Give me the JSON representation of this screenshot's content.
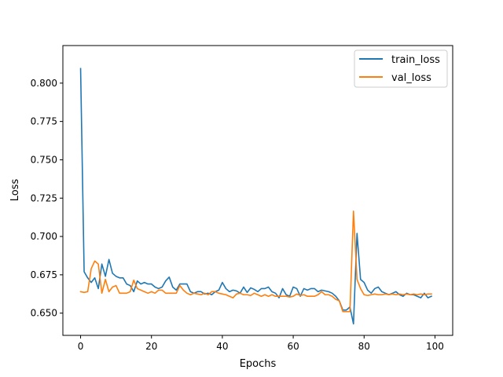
{
  "chart_data": {
    "type": "line",
    "title": "",
    "xlabel": "Epochs",
    "ylabel": "Loss",
    "xlim": [
      -5,
      105
    ],
    "ylim": [
      0.6355,
      0.8245
    ],
    "xticks": [
      0,
      20,
      40,
      60,
      80,
      100
    ],
    "yticks": [
      0.65,
      0.675,
      0.7,
      0.725,
      0.75,
      0.775,
      0.8
    ],
    "ytick_labels": [
      "0.650",
      "0.675",
      "0.700",
      "0.725",
      "0.750",
      "0.775",
      "0.800"
    ],
    "grid": false,
    "legend_position": "top-right",
    "series": [
      {
        "name": "train_loss",
        "color": "#1f77b4",
        "values": [
          0.8095,
          0.677,
          0.673,
          0.67,
          0.673,
          0.666,
          0.682,
          0.674,
          0.685,
          0.676,
          0.674,
          0.673,
          0.673,
          0.669,
          0.668,
          0.664,
          0.671,
          0.669,
          0.67,
          0.669,
          0.669,
          0.667,
          0.666,
          0.667,
          0.671,
          0.6735,
          0.667,
          0.665,
          0.669,
          0.669,
          0.669,
          0.664,
          0.663,
          0.664,
          0.664,
          0.6625,
          0.663,
          0.662,
          0.664,
          0.665,
          0.67,
          0.666,
          0.664,
          0.665,
          0.6645,
          0.663,
          0.667,
          0.6635,
          0.6665,
          0.6655,
          0.664,
          0.666,
          0.666,
          0.667,
          0.664,
          0.663,
          0.66,
          0.666,
          0.662,
          0.661,
          0.667,
          0.666,
          0.661,
          0.666,
          0.665,
          0.666,
          0.666,
          0.664,
          0.665,
          0.6645,
          0.664,
          0.663,
          0.661,
          0.658,
          0.652,
          0.652,
          0.654,
          0.643,
          0.702,
          0.672,
          0.67,
          0.665,
          0.663,
          0.666,
          0.667,
          0.664,
          0.663,
          0.662,
          0.663,
          0.664,
          0.662,
          0.661,
          0.663,
          0.662,
          0.662,
          0.661,
          0.66,
          0.663,
          0.66,
          0.661
        ]
      },
      {
        "name": "val_loss",
        "color": "#ff7f0e",
        "values": [
          0.664,
          0.6635,
          0.664,
          0.679,
          0.684,
          0.682,
          0.663,
          0.672,
          0.664,
          0.667,
          0.668,
          0.663,
          0.663,
          0.663,
          0.664,
          0.6715,
          0.666,
          0.665,
          0.664,
          0.663,
          0.664,
          0.663,
          0.665,
          0.665,
          0.663,
          0.663,
          0.663,
          0.663,
          0.668,
          0.665,
          0.663,
          0.662,
          0.663,
          0.6625,
          0.662,
          0.663,
          0.662,
          0.664,
          0.664,
          0.663,
          0.6625,
          0.662,
          0.661,
          0.66,
          0.6625,
          0.663,
          0.662,
          0.662,
          0.6615,
          0.663,
          0.662,
          0.661,
          0.662,
          0.661,
          0.662,
          0.661,
          0.661,
          0.661,
          0.661,
          0.6605,
          0.661,
          0.6625,
          0.6615,
          0.662,
          0.661,
          0.661,
          0.661,
          0.662,
          0.664,
          0.662,
          0.662,
          0.661,
          0.659,
          0.658,
          0.651,
          0.651,
          0.651,
          0.7165,
          0.672,
          0.666,
          0.662,
          0.6615,
          0.662,
          0.6625,
          0.662,
          0.662,
          0.6625,
          0.662,
          0.6625,
          0.662,
          0.6625,
          0.662,
          0.6625,
          0.662,
          0.6625,
          0.662,
          0.6625,
          0.662,
          0.6625,
          0.6625
        ]
      }
    ]
  }
}
